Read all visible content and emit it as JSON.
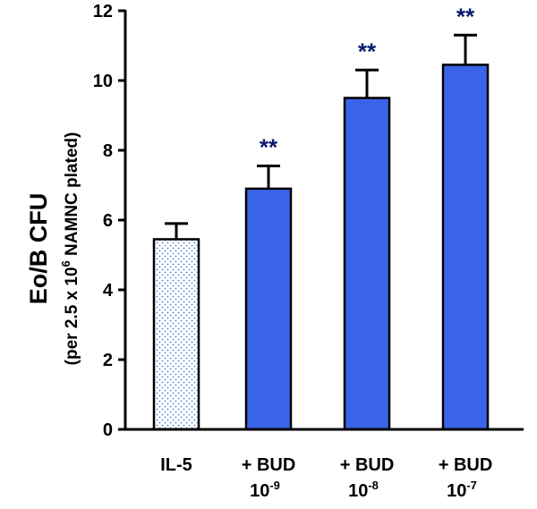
{
  "chart_data": {
    "type": "bar",
    "ylabel": "Eo/B CFU",
    "ylabel_sub": {
      "before": "(per 2.5 x 10",
      "sup": "6",
      "after": " NAMNC plated)"
    },
    "ylim": [
      0,
      12
    ],
    "yticks": [
      0,
      2,
      4,
      6,
      8,
      10,
      12
    ],
    "categories": [
      {
        "line1": "IL-5",
        "line2": "",
        "exp": ""
      },
      {
        "line1": "+ BUD",
        "line2": "10",
        "exp": "-9"
      },
      {
        "line1": "+ BUD",
        "line2": "10",
        "exp": "-8"
      },
      {
        "line1": "+ BUD",
        "line2": "10",
        "exp": "-7"
      }
    ],
    "values": [
      5.45,
      6.9,
      9.5,
      10.45
    ],
    "errors": [
      0.45,
      0.65,
      0.8,
      0.85
    ],
    "significance": [
      "",
      "**",
      "**",
      "**"
    ],
    "colors": {
      "bar": "#3a64e8",
      "control_dot": "#4a78d8",
      "control_bg": "#ffffff",
      "significance": "#0a1a6e",
      "axis": "#000000"
    }
  }
}
